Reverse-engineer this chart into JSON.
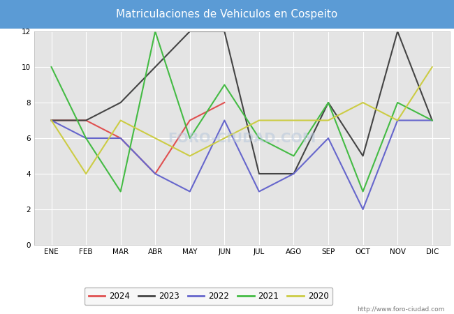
{
  "title": "Matriculaciones de Vehiculos en Cospeito",
  "title_bg_color": "#5b9bd5",
  "title_text_color": "#ffffff",
  "months": [
    "ENE",
    "FEB",
    "MAR",
    "ABR",
    "MAY",
    "JUN",
    "JUL",
    "AGO",
    "SEP",
    "OCT",
    "NOV",
    "DIC"
  ],
  "series": {
    "2024": {
      "color": "#e05050",
      "data": [
        7,
        7,
        6,
        4,
        7,
        8,
        null,
        null,
        null,
        null,
        null,
        null
      ]
    },
    "2023": {
      "color": "#444444",
      "data": [
        7,
        7,
        8,
        10,
        12,
        12,
        4,
        4,
        8,
        5,
        12,
        7
      ]
    },
    "2022": {
      "color": "#6666cc",
      "data": [
        7,
        6,
        6,
        4,
        3,
        7,
        3,
        4,
        6,
        2,
        7,
        7
      ]
    },
    "2021": {
      "color": "#44bb44",
      "data": [
        10,
        6,
        3,
        12,
        6,
        9,
        6,
        5,
        8,
        3,
        8,
        7
      ]
    },
    "2020": {
      "color": "#cccc44",
      "data": [
        7,
        4,
        7,
        6,
        5,
        6,
        7,
        7,
        7,
        8,
        7,
        10
      ]
    }
  },
  "ylim": [
    0,
    12
  ],
  "yticks": [
    0,
    2,
    4,
    6,
    8,
    10,
    12
  ],
  "plot_bg_color": "#e4e4e4",
  "grid_color": "#ffffff",
  "fig_bg_color": "#ffffff",
  "watermark_text": "http://www.foro-ciudad.com",
  "watermark_chart": "FORO-CIUDAD.COM",
  "legend_order": [
    "2024",
    "2023",
    "2022",
    "2021",
    "2020"
  ],
  "title_fontsize": 11,
  "tick_fontsize": 7.5,
  "legend_fontsize": 8.5
}
